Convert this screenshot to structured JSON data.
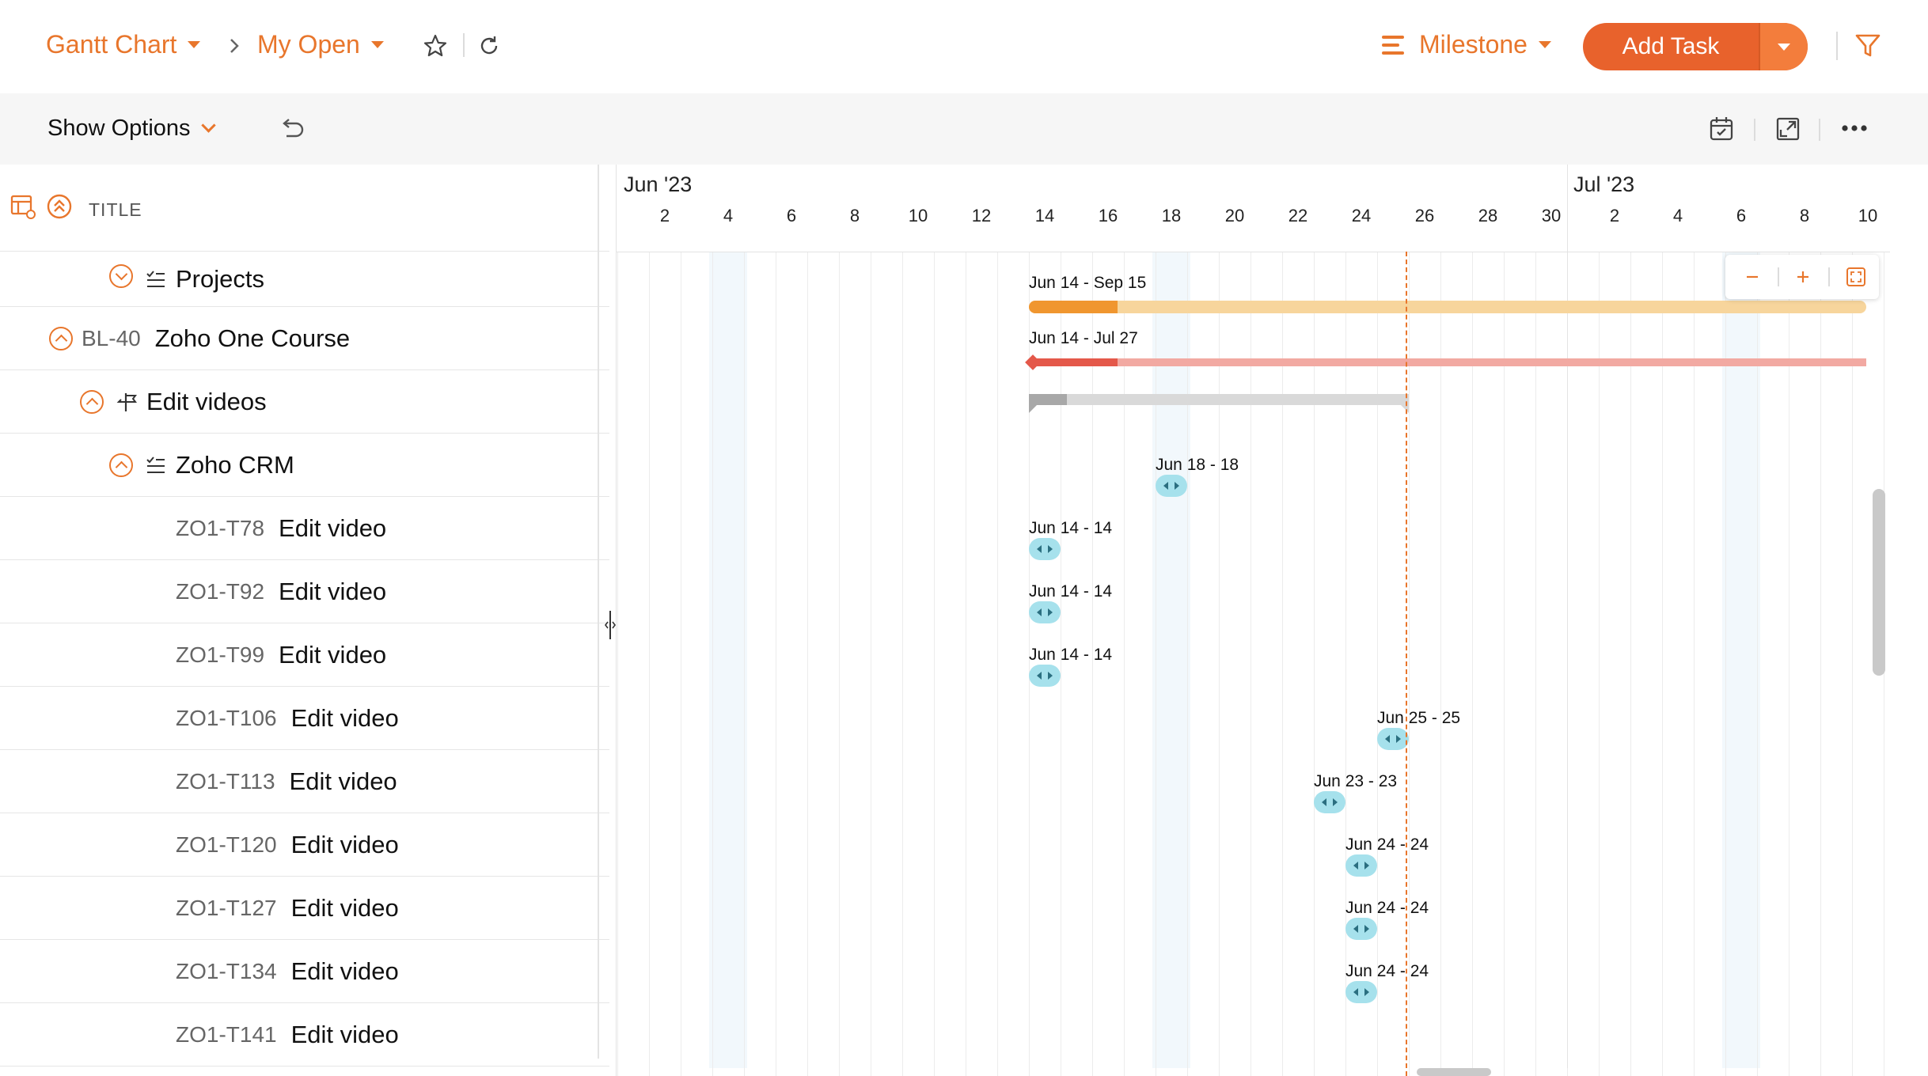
{
  "header": {
    "view_label": "Gantt Chart",
    "filter_label": "My Open",
    "milestone_label": "Milestone",
    "add_task_label": "Add Task",
    "accent_color": "#e8762c",
    "add_task_color": "#e8622c"
  },
  "toolbar": {
    "show_options_label": "Show Options"
  },
  "list": {
    "title_header": "TITLE",
    "rows": [
      {
        "key": "",
        "title": "Projects",
        "type": "tasklist"
      },
      {
        "key": "BL-40",
        "title": "Zoho One Course",
        "type": "project"
      },
      {
        "key": "",
        "title": "Edit videos",
        "type": "milestone"
      },
      {
        "key": "",
        "title": "Zoho CRM",
        "type": "tasklist"
      },
      {
        "key": "ZO1-T78",
        "title": "Edit video",
        "type": "task"
      },
      {
        "key": "ZO1-T92",
        "title": "Edit video",
        "type": "task"
      },
      {
        "key": "ZO1-T99",
        "title": "Edit video",
        "type": "task"
      },
      {
        "key": "ZO1-T106",
        "title": "Edit video",
        "type": "task"
      },
      {
        "key": "ZO1-T113",
        "title": "Edit video",
        "type": "task"
      },
      {
        "key": "ZO1-T120",
        "title": "Edit video",
        "type": "task"
      },
      {
        "key": "ZO1-T127",
        "title": "Edit video",
        "type": "task"
      },
      {
        "key": "ZO1-T134",
        "title": "Edit video",
        "type": "task"
      },
      {
        "key": "ZO1-T141",
        "title": "Edit video",
        "type": "task"
      }
    ]
  },
  "timeline": {
    "months": [
      {
        "label": "Jun '23",
        "start_day": 1
      },
      {
        "label": "Jul '23",
        "start_day": 31
      }
    ],
    "day_ticks": [
      {
        "day": 2,
        "label": "2"
      },
      {
        "day": 4,
        "label": "4"
      },
      {
        "day": 6,
        "label": "6"
      },
      {
        "day": 8,
        "label": "8"
      },
      {
        "day": 10,
        "label": "10"
      },
      {
        "day": 12,
        "label": "12"
      },
      {
        "day": 14,
        "label": "14"
      },
      {
        "day": 16,
        "label": "16"
      },
      {
        "day": 18,
        "label": "18"
      },
      {
        "day": 20,
        "label": "20"
      },
      {
        "day": 22,
        "label": "22"
      },
      {
        "day": 24,
        "label": "24"
      },
      {
        "day": 26,
        "label": "26"
      },
      {
        "day": 28,
        "label": "28"
      },
      {
        "day": 30,
        "label": "30"
      },
      {
        "day": 32,
        "label": "2"
      },
      {
        "day": 34,
        "label": "4"
      },
      {
        "day": 36,
        "label": "6"
      },
      {
        "day": 38,
        "label": "8"
      },
      {
        "day": 40,
        "label": "10"
      }
    ],
    "weekend_days": [
      4,
      18,
      36
    ],
    "today_day": 25.9,
    "bars": [
      {
        "row": 0,
        "label": "Jun 14 - Sep 15",
        "start_day": 14,
        "progress_end_day": 16.8,
        "style": "project",
        "color": "#f0962f",
        "track_color": "#f7d59c"
      },
      {
        "row": 1,
        "label": "Jun 14 - Jul 27",
        "start_day": 14,
        "progress_end_day": 16.8,
        "style": "milestone",
        "color": "#e4584a",
        "track_color": "#f2a9a2"
      },
      {
        "row": 2,
        "label": "",
        "start_day": 14,
        "end_day": 26,
        "progress_end_day": 15.2,
        "style": "tasklist",
        "color": "#a8a8a8",
        "track_color": "#d9d9d9"
      },
      {
        "row": 3,
        "label": "Jun 18 - 18",
        "day": 18,
        "style": "task"
      },
      {
        "row": 4,
        "label": "Jun 14 - 14",
        "day": 14,
        "style": "task"
      },
      {
        "row": 5,
        "label": "Jun 14 - 14",
        "day": 14,
        "style": "task"
      },
      {
        "row": 6,
        "label": "Jun 14 - 14",
        "day": 14,
        "style": "task"
      },
      {
        "row": 7,
        "label": "Jun 25 - 25",
        "day": 25,
        "style": "task"
      },
      {
        "row": 8,
        "label": "Jun 23 - 23",
        "day": 23,
        "style": "task"
      },
      {
        "row": 9,
        "label": "Jun 24 - 24",
        "day": 24,
        "style": "task"
      },
      {
        "row": 10,
        "label": "Jun 24 - 24",
        "day": 24,
        "style": "task"
      },
      {
        "row": 11,
        "label": "Jun 24 - 24",
        "day": 24,
        "style": "task"
      }
    ]
  }
}
